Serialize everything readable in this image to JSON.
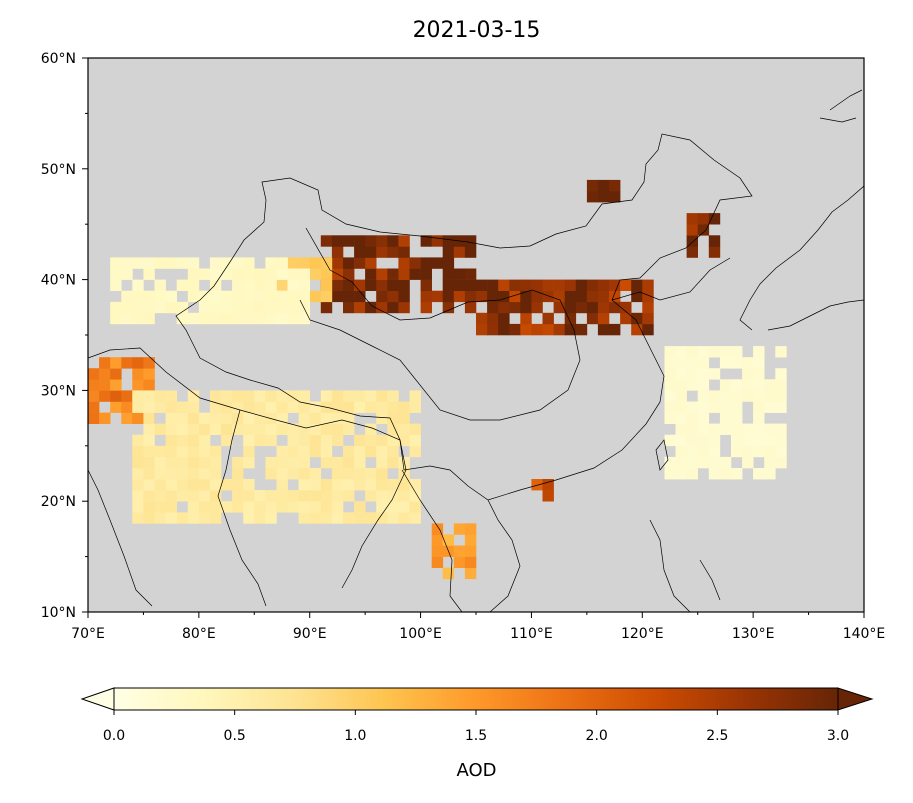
{
  "title": "2021-03-15",
  "map": {
    "extent": {
      "lon_min": 70,
      "lon_max": 140,
      "lat_min": 10,
      "lat_max": 60
    },
    "land_color": "#d3d3d3",
    "boundary_color": "#000000",
    "lon_ticks": [
      70,
      80,
      90,
      100,
      110,
      120,
      130,
      140
    ],
    "lon_tick_labels": [
      "70°E",
      "80°E",
      "90°E",
      "100°E",
      "110°E",
      "120°E",
      "130°E",
      "140°E"
    ],
    "lat_ticks": [
      10,
      20,
      30,
      40,
      50,
      60
    ],
    "lat_tick_labels": [
      "10°N",
      "20°N",
      "30°N",
      "40°N",
      "50°N",
      "60°N"
    ]
  },
  "colorbar": {
    "label": "AOD",
    "min": 0.0,
    "max": 3.0,
    "extend": "both",
    "ticks": [
      0.0,
      0.5,
      1.0,
      1.5,
      2.0,
      2.5,
      3.0
    ],
    "tick_labels": [
      "0.0",
      "0.5",
      "1.0",
      "1.5",
      "2.0",
      "2.5",
      "3.0"
    ],
    "colormap": [
      "#ffffe5",
      "#fff7bc",
      "#fee391",
      "#fec44f",
      "#fe9929",
      "#ec7014",
      "#cc4c02",
      "#993404",
      "#662506"
    ]
  },
  "chart_data": {
    "type": "heatmap",
    "title": "2021-03-15",
    "variable": "AOD",
    "value_range": [
      0,
      3
    ],
    "regions": [
      {
        "lon": [
          91,
          105
        ],
        "lat": [
          37,
          44
        ],
        "value": 2.9
      },
      {
        "lon": [
          105,
          121
        ],
        "lat": [
          35,
          40
        ],
        "value": 2.7
      },
      {
        "lon": [
          85,
          92
        ],
        "lat": [
          38,
          42
        ],
        "value": 1.0
      },
      {
        "lon": [
          72,
          90
        ],
        "lat": [
          36,
          42
        ],
        "value": 0.3
      },
      {
        "lon": [
          70,
          76
        ],
        "lat": [
          27,
          33
        ],
        "value": 1.7
      },
      {
        "lon": [
          74,
          100
        ],
        "lat": [
          18,
          30
        ],
        "value": 0.6
      },
      {
        "lon": [
          101,
          105
        ],
        "lat": [
          13,
          18
        ],
        "value": 1.4
      },
      {
        "lon": [
          110,
          112
        ],
        "lat": [
          20,
          22
        ],
        "value": 2.0
      },
      {
        "lon": [
          115,
          118
        ],
        "lat": [
          47,
          49
        ],
        "value": 3.0
      },
      {
        "lon": [
          124,
          127
        ],
        "lat": [
          42,
          46
        ],
        "value": 3.0
      },
      {
        "lon": [
          122,
          133
        ],
        "lat": [
          22,
          34
        ],
        "value": 0.2
      }
    ]
  }
}
